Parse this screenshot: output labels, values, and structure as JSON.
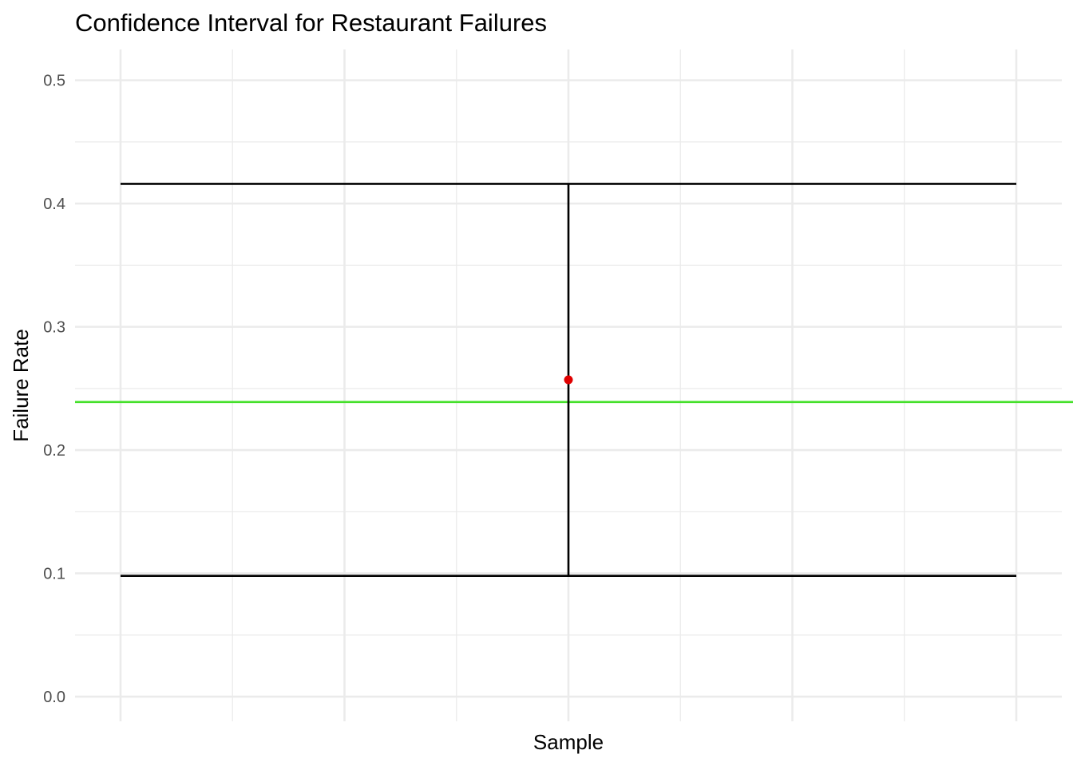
{
  "chart_data": {
    "type": "errorbar",
    "title": "Confidence Interval for Restaurant Failures",
    "xlabel": "Sample",
    "ylabel": "Failure Rate",
    "ylim": [
      -0.02,
      0.525
    ],
    "y_ticks": [
      "0.0",
      "0.1",
      "0.2",
      "0.3",
      "0.4",
      "0.5"
    ],
    "y_tick_values": [
      0.0,
      0.1,
      0.2,
      0.3,
      0.4,
      0.5
    ],
    "grid": true,
    "x_tick_labels": "none",
    "estimate": 0.257,
    "ci_lower": 0.098,
    "ci_upper": 0.416,
    "reference_line": 0.239,
    "colors": {
      "estimate_point": "#e00000",
      "error_bar": "#000000",
      "reference_line": "#44e02a",
      "grid": "#ebebeb"
    }
  }
}
